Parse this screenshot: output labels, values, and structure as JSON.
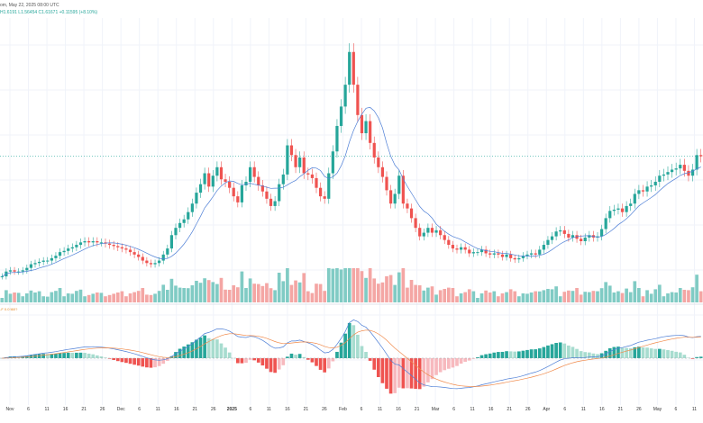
{
  "header": {
    "title": "om, May 22, 2025 08:00 UTC",
    "ohlc": "H1.6191 L1.56454 C1.61671 +0.11595 (+8.10%)",
    "macd_label": "-F 0.0860?"
  },
  "colors": {
    "up": "#26a69a",
    "down": "#ef5350",
    "vol_up": "#80cbc4",
    "vol_down": "#f4a6a4",
    "ma": "#4e7fd6",
    "signal": "#f08a4b",
    "hist_up": "#26a69a",
    "hist_down": "#ef5350",
    "hist_up_light": "#a7dccf",
    "hist_down_light": "#f7b9be",
    "price_line": "#26a69a"
  },
  "x_axis": {
    "ticks": [
      {
        "label": "Nov",
        "bold": false
      },
      {
        "label": "6",
        "bold": false
      },
      {
        "label": "11",
        "bold": false
      },
      {
        "label": "16",
        "bold": false
      },
      {
        "label": "21",
        "bold": false
      },
      {
        "label": "26",
        "bold": false
      },
      {
        "label": "Dec",
        "bold": false
      },
      {
        "label": "6",
        "bold": false
      },
      {
        "label": "11",
        "bold": false
      },
      {
        "label": "16",
        "bold": false
      },
      {
        "label": "21",
        "bold": false
      },
      {
        "label": "26",
        "bold": false
      },
      {
        "label": "2025",
        "bold": true
      },
      {
        "label": "6",
        "bold": false
      },
      {
        "label": "11",
        "bold": false
      },
      {
        "label": "16",
        "bold": false
      },
      {
        "label": "21",
        "bold": false
      },
      {
        "label": "26",
        "bold": false
      },
      {
        "label": "Feb",
        "bold": false
      },
      {
        "label": "6",
        "bold": false
      },
      {
        "label": "11",
        "bold": false
      },
      {
        "label": "16",
        "bold": false
      },
      {
        "label": "21",
        "bold": false
      },
      {
        "label": "Mar",
        "bold": false
      },
      {
        "label": "6",
        "bold": false
      },
      {
        "label": "11",
        "bold": false
      },
      {
        "label": "16",
        "bold": false
      },
      {
        "label": "21",
        "bold": false
      },
      {
        "label": "26",
        "bold": false
      },
      {
        "label": "Apr",
        "bold": false
      },
      {
        "label": "6",
        "bold": false
      },
      {
        "label": "11",
        "bold": false
      },
      {
        "label": "16",
        "bold": false
      },
      {
        "label": "21",
        "bold": false
      },
      {
        "label": "26",
        "bold": false
      },
      {
        "label": "May",
        "bold": false
      },
      {
        "label": "6",
        "bold": false
      },
      {
        "label": "11",
        "bold": false
      }
    ]
  },
  "chart_data": [
    {
      "type": "candlestick",
      "description_source": "approximate relative price path read from the plot (no price axis visible)",
      "close_path": [
        0.62,
        0.66,
        0.67,
        0.66,
        0.66,
        0.67,
        0.69,
        0.72,
        0.73,
        0.74,
        0.75,
        0.75,
        0.77,
        0.79,
        0.82,
        0.83,
        0.85,
        0.86,
        0.88,
        0.9,
        0.91,
        0.9,
        0.91,
        0.9,
        0.9,
        0.89,
        0.88,
        0.87,
        0.86,
        0.85,
        0.84,
        0.82,
        0.8,
        0.78,
        0.75,
        0.73,
        0.72,
        0.73,
        0.75,
        0.8,
        0.85,
        0.96,
        1.02,
        1.06,
        1.09,
        1.15,
        1.22,
        1.31,
        1.38,
        1.47,
        1.36,
        1.45,
        1.52,
        1.42,
        1.4,
        1.35,
        1.28,
        1.23,
        1.37,
        1.4,
        1.52,
        1.44,
        1.37,
        1.32,
        1.26,
        1.2,
        1.24,
        1.38,
        1.46,
        1.7,
        1.62,
        1.52,
        1.6,
        1.47,
        1.46,
        1.43,
        1.35,
        1.28,
        1.26,
        1.47,
        1.65,
        1.86,
        2.02,
        2.2,
        2.47,
        2.2,
        1.95,
        1.8,
        1.9,
        1.72,
        1.6,
        1.52,
        1.44,
        1.33,
        1.22,
        1.3,
        1.45,
        1.22,
        1.18,
        1.1,
        1.02,
        0.95,
        0.98,
        1.02,
        0.98,
        1.0,
        0.96,
        0.92,
        0.88,
        0.85,
        0.84,
        0.86,
        0.84,
        0.81,
        0.82,
        0.82,
        0.84,
        0.81,
        0.8,
        0.81,
        0.8,
        0.78,
        0.8,
        0.77,
        0.76,
        0.77,
        0.79,
        0.8,
        0.81,
        0.8,
        0.84,
        0.88,
        0.92,
        0.95,
        0.99,
        1.0,
        0.97,
        0.94,
        0.96,
        0.93,
        0.91,
        0.94,
        0.96,
        0.94,
        0.95,
        1.01,
        1.1,
        1.16,
        1.17,
        1.18,
        1.15,
        1.2,
        1.22,
        1.3,
        1.33,
        1.32,
        1.36,
        1.37,
        1.4,
        1.45,
        1.46,
        1.48,
        1.5,
        1.51,
        1.54,
        1.49,
        1.45,
        1.5,
        1.62,
        1.61
      ]
    },
    {
      "type": "line",
      "name": "",
      "description_source": "moving average line"
    },
    {
      "type": "bar",
      "description_source": "volume histogram"
    },
    {
      "type": "line",
      "description_source": "MACD line, signal line and histogram"
    }
  ]
}
